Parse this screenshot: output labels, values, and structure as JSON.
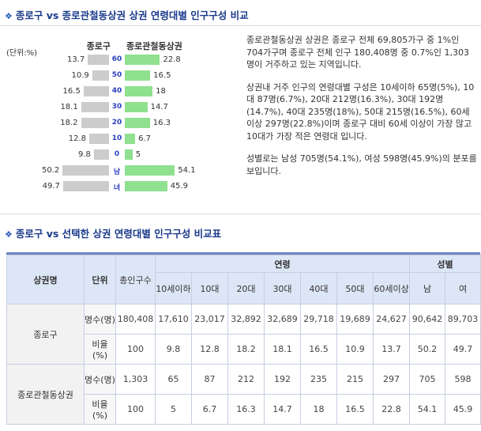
{
  "section1": {
    "title": "종로구 vs 종로관철동상권 상권 연령대별 인구구성 비교"
  },
  "chart": {
    "unit_label": "(단위:%)",
    "left_header": "종로구",
    "right_header": "종로관철동상권"
  },
  "chart_data": {
    "type": "bar",
    "categories": [
      "60",
      "50",
      "40",
      "30",
      "20",
      "10",
      "0",
      "남",
      "녀"
    ],
    "series": [
      {
        "name": "종로구",
        "values": [
          13.7,
          10.9,
          16.5,
          18.1,
          18.2,
          12.8,
          9.8,
          50.2,
          49.7
        ]
      },
      {
        "name": "종로관철동상권",
        "values": [
          22.8,
          16.5,
          18,
          14.7,
          16.3,
          6.7,
          5,
          54.1,
          45.9
        ]
      }
    ],
    "left_labels": [
      "13.7",
      "10.9",
      "16.5",
      "18.1",
      "18.2",
      "12.8",
      "9.8",
      "50.2",
      "49.7"
    ],
    "right_labels": [
      "22.8",
      "16.5",
      "18",
      "14.7",
      "16.3",
      "6.7",
      "5",
      "54.1",
      "45.9"
    ]
  },
  "description": {
    "p1": "종로관철동상권 상권은 종로구 전체 69,805가구 중 1%인 704가구며 종로구 전체 인구 180,408명 중 0.7%인 1,303명이 거주하고 있는 지역입니다.",
    "p2": "상권내 거주 인구의 연령대별 구성은 10세이하 65명(5%), 10대 87명(6.7%), 20대 212명(16.3%), 30대 192명(14.7%), 40대 235명(18%), 50대 215명(16.5%), 60세이상 297명(22.8%)이며 종로구 대비 60세 이상이 가장 많고 10대가 가장 적은 연령대 입니다.",
    "p3": "성별로는 남성 705명(54.1%), 여성 598명(45.9%)의 분포를 보입니다."
  },
  "section2": {
    "title": "종로구 vs 선택한 상권 연령대별 인구구성 비교표"
  },
  "table": {
    "h_area": "상권명",
    "h_unit": "단위",
    "h_total": "총인구수",
    "h_age": "연령",
    "h_gender": "성별",
    "age_cols": [
      "10세이하",
      "10대",
      "20대",
      "30대",
      "40대",
      "50대",
      "60세이상"
    ],
    "gender_cols": [
      "남",
      "여"
    ],
    "unit_count": "명수(명)",
    "unit_ratio": "비율(%)",
    "rows": [
      {
        "name": "종로구",
        "count": [
          "180,408",
          "17,610",
          "23,017",
          "32,892",
          "32,689",
          "29,718",
          "19,689",
          "24,627",
          "90,642",
          "89,703"
        ],
        "ratio": [
          "100",
          "9.8",
          "12.8",
          "18.2",
          "18.1",
          "16.5",
          "10.9",
          "13.7",
          "50.2",
          "49.7"
        ]
      },
      {
        "name": "종로관철동상권",
        "count": [
          "1,303",
          "65",
          "87",
          "212",
          "192",
          "235",
          "215",
          "297",
          "705",
          "598"
        ],
        "ratio": [
          "100",
          "5",
          "6.7",
          "16.3",
          "14.7",
          "18",
          "16.5",
          "22.8",
          "54.1",
          "45.9"
        ]
      }
    ]
  }
}
